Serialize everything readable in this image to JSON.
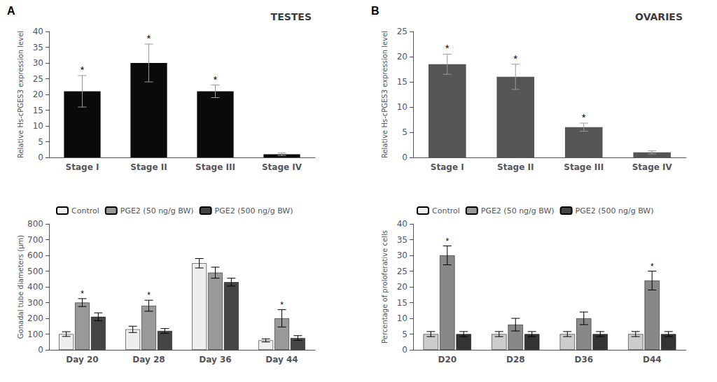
{
  "chart_data": [
    {
      "type": "bar",
      "title": "TESTES",
      "categories": [
        "Stage I",
        "Stage II",
        "Stage III",
        "Stage IV"
      ],
      "values": [
        21,
        30,
        21,
        1
      ],
      "errors": [
        5,
        6,
        2,
        0.4
      ],
      "color": "#0a0a0a",
      "ylabel": "Relative Hs-cPGES3 expression level",
      "ylim": [
        0,
        40
      ],
      "yticks": [
        0,
        5,
        10,
        15,
        20,
        25,
        30,
        35,
        40
      ],
      "grid": false,
      "annotations": [
        {
          "text": "A"
        },
        {
          "text": "*",
          "significant": [
            true,
            true,
            true,
            false
          ]
        }
      ]
    },
    {
      "type": "bar",
      "title": "OVARIES",
      "categories": [
        "Stage I",
        "Stage II",
        "Stage III",
        "Stage IV"
      ],
      "values": [
        18.5,
        16,
        6,
        1
      ],
      "errors": [
        2,
        2.5,
        0.8,
        0.3
      ],
      "color": "#555555",
      "ylabel": "Relative Hs-cPGES3 expression level",
      "ylim": [
        0,
        25
      ],
      "yticks": [
        0,
        5,
        10,
        15,
        20,
        25
      ],
      "grid": false,
      "annotations": [
        {
          "text": "B"
        },
        {
          "text": "*",
          "significant": [
            true,
            true,
            true,
            false
          ]
        }
      ]
    },
    {
      "type": "bar",
      "categories": [
        "Day 20",
        "Day 28",
        "Day 36",
        "Day 44"
      ],
      "series": [
        {
          "name": "Control",
          "color": "#EEEEEE",
          "values": [
            100,
            130,
            550,
            60
          ],
          "errors": [
            15,
            20,
            30,
            10
          ]
        },
        {
          "name": "PGE2 (50 ng/g BW)",
          "color": "#999999",
          "values": [
            300,
            280,
            490,
            200
          ],
          "errors": [
            25,
            35,
            35,
            55
          ]
        },
        {
          "name": "PGE2 (500 ng/g BW)",
          "color": "#444444",
          "values": [
            210,
            120,
            430,
            75
          ],
          "errors": [
            25,
            15,
            25,
            15
          ]
        }
      ],
      "ylabel": "Gonadal tube diameters (μm)",
      "ylim": [
        0,
        800
      ],
      "yticks": [
        0,
        100,
        200,
        300,
        400,
        500,
        600,
        700,
        800
      ],
      "grid": false,
      "legend": "upper center",
      "annotations": [
        {
          "text": "*",
          "series": 1,
          "significant": [
            true,
            true,
            false,
            true
          ]
        }
      ]
    },
    {
      "type": "bar",
      "categories": [
        "D20",
        "D28",
        "D36",
        "D44"
      ],
      "series": [
        {
          "name": "Control",
          "color": "#CCCCCC",
          "values": [
            5,
            5,
            5,
            5
          ],
          "errors": [
            0.8,
            0.8,
            0.8,
            0.8
          ]
        },
        {
          "name": "PGE2 (50 ng/g BW)",
          "color": "#888888",
          "values": [
            30,
            8,
            10,
            22
          ],
          "errors": [
            3,
            2,
            2,
            3
          ]
        },
        {
          "name": "PGE2 (500 ng/g BW)",
          "color": "#333333",
          "values": [
            5,
            5,
            5,
            5
          ],
          "errors": [
            0.8,
            0.8,
            0.8,
            0.8
          ]
        }
      ],
      "ylabel": "Percentage of proloferative cells",
      "ylim": [
        0,
        40
      ],
      "yticks": [
        0,
        5,
        10,
        15,
        20,
        25,
        30,
        35,
        40
      ],
      "grid": false,
      "legend": "upper left",
      "annotations": [
        {
          "text": "*",
          "series": 1,
          "significant": [
            true,
            false,
            false,
            true
          ]
        }
      ]
    }
  ]
}
